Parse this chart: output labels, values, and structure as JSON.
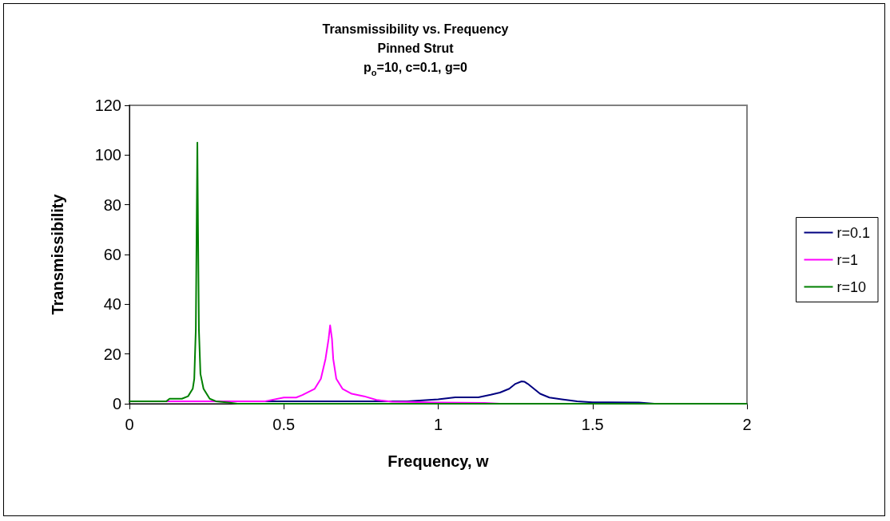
{
  "chart_data": {
    "type": "line",
    "title": "Transmissibility vs. Frequency\nPinned Strut\np$_{o}$=10, c=0.1, g=0",
    "xlabel": "Frequency, w",
    "ylabel": "Transmissibility",
    "xlim": [
      0,
      2
    ],
    "xticks": [
      0,
      0.5,
      1,
      1.5,
      2
    ],
    "ylim": [
      0,
      120
    ],
    "yticks": [
      0,
      20,
      40,
      60,
      80,
      100,
      120
    ],
    "grid": false,
    "legend": "right",
    "marker": "none",
    "line_style": "solid",
    "series": [
      {
        "name": "r=0.1",
        "color": "#000080",
        "x": [
          0,
          0.5,
          0.9,
          1.0,
          1.055,
          1.13,
          1.17,
          1.2,
          1.23,
          1.25,
          1.27,
          1.28,
          1.29,
          1.31,
          1.33,
          1.36,
          1.4,
          1.45,
          1.5,
          1.65,
          1.7,
          2
        ],
        "values": [
          1,
          1,
          1,
          1.8,
          2.6,
          2.6,
          3.6,
          4.5,
          6,
          8,
          9,
          8.8,
          8,
          6,
          4,
          2.5,
          1.8,
          1,
          0.6,
          0.5,
          0,
          0
        ]
      },
      {
        "name": "r=1",
        "color": "#ff00ff",
        "x": [
          0,
          0.44,
          0.5,
          0.54,
          0.56,
          0.6,
          0.62,
          0.635,
          0.645,
          0.65,
          0.656,
          0.66,
          0.67,
          0.69,
          0.72,
          0.76,
          0.8,
          0.85,
          1.0,
          1.15,
          1.2,
          2
        ],
        "values": [
          1,
          1,
          2.5,
          2.5,
          3.5,
          6,
          10,
          18,
          26,
          31.5,
          26,
          18,
          10,
          6,
          4,
          3,
          1.5,
          0.8,
          0.5,
          0.3,
          0,
          0
        ]
      },
      {
        "name": "r=10",
        "color": "#008000",
        "x": [
          0,
          0.12,
          0.13,
          0.17,
          0.19,
          0.205,
          0.21,
          0.215,
          0.22,
          0.222,
          0.225,
          0.23,
          0.24,
          0.26,
          0.28,
          0.32,
          0.35,
          2
        ],
        "values": [
          1,
          1,
          2,
          2,
          3,
          6,
          10,
          30,
          105,
          72,
          30,
          12,
          6,
          2,
          1,
          0.5,
          0,
          0
        ]
      }
    ]
  }
}
